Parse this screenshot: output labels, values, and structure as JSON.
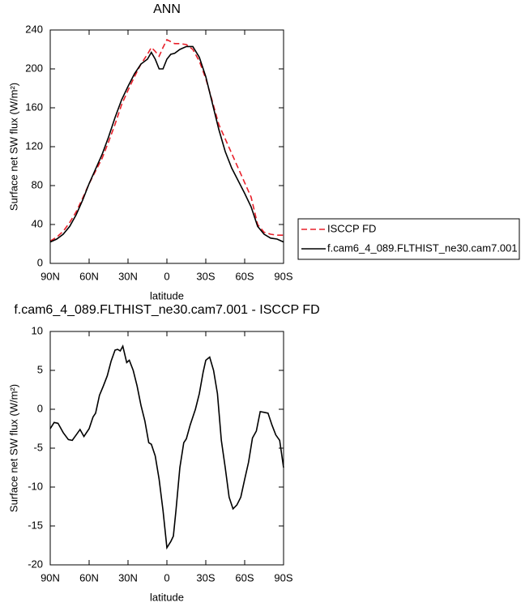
{
  "chart_data": [
    {
      "type": "line",
      "title": "ANN",
      "x_label": "latitude",
      "y_label": "Surface net SW flux (W/m²)",
      "x": [
        90,
        85,
        80,
        75,
        70,
        65,
        60,
        55,
        50,
        45,
        40,
        35,
        30,
        25,
        20,
        15,
        12,
        9,
        6,
        3,
        0,
        -3,
        -6,
        -10,
        -15,
        -20,
        -25,
        -30,
        -35,
        -40,
        -45,
        -50,
        -55,
        -60,
        -65,
        -70,
        -75,
        -80,
        -85,
        -90
      ],
      "series": [
        {
          "name": "ISCCP FD",
          "color": "#e8202a",
          "line_style": "dashed",
          "values": [
            23,
            27,
            33,
            42,
            53,
            67,
            82,
            95,
            108,
            125,
            143,
            163,
            178,
            192,
            205,
            215,
            222,
            218,
            213,
            222,
            230,
            228,
            226,
            226,
            225,
            220,
            208,
            190,
            167,
            143,
            128,
            113,
            98,
            83,
            68,
            40,
            32,
            30,
            29,
            29
          ]
        },
        {
          "name": "f.cam6_4_089.FLTHIST_ne30.cam7.001",
          "color": "#000000",
          "line_style": "solid",
          "values": [
            22,
            25,
            30,
            38,
            50,
            65,
            82,
            97,
            112,
            130,
            150,
            168,
            182,
            195,
            205,
            210,
            217,
            210,
            200,
            200,
            210,
            215,
            216,
            220,
            223,
            223,
            212,
            192,
            165,
            138,
            115,
            98,
            85,
            72,
            58,
            38,
            30,
            26,
            25,
            22
          ]
        }
      ],
      "xlim": [
        90,
        -90
      ],
      "xticks": [
        {
          "value": 90,
          "label": "90N"
        },
        {
          "value": 60,
          "label": "60N"
        },
        {
          "value": 30,
          "label": "30N"
        },
        0,
        {
          "value": -30,
          "label": "30S"
        },
        {
          "value": -60,
          "label": "60S"
        },
        {
          "value": -90,
          "label": "90S"
        }
      ],
      "ylim": [
        0,
        240
      ],
      "yticks": [
        0,
        40,
        80,
        120,
        160,
        200,
        240
      ],
      "grid": false,
      "legend_position": "right"
    },
    {
      "type": "line",
      "title": "f.cam6_4_089.FLTHIST_ne30.cam7.001 - ISCCP FD",
      "x_label": "latitude",
      "y_label": "Surface net SW flux (W/m²)",
      "x": [
        90,
        87,
        84,
        80,
        76,
        73,
        70,
        67,
        64,
        60,
        57,
        55,
        52,
        49,
        46,
        43,
        40,
        38,
        36,
        34,
        31,
        29,
        26,
        23,
        20,
        17,
        14,
        12,
        9,
        6,
        3,
        0,
        -3,
        -5,
        -7,
        -10,
        -13,
        -15,
        -18,
        -22,
        -25,
        -28,
        -30,
        -33,
        -36,
        -39,
        -42,
        -45,
        -48,
        -51,
        -54,
        -57,
        -60,
        -63,
        -66,
        -69,
        -72,
        -75,
        -78,
        -81,
        -84,
        -87,
        -90
      ],
      "series": [
        {
          "color": "#000000",
          "line_style": "solid",
          "values": [
            -2.5,
            -1.7,
            -1.8,
            -3,
            -3.9,
            -4,
            -3.3,
            -2.6,
            -3.5,
            -2.5,
            -1,
            -0.5,
            1.8,
            3,
            4.3,
            6.2,
            7.6,
            7.7,
            7.5,
            8.1,
            6,
            6.3,
            5,
            3,
            0.5,
            -1.5,
            -4.3,
            -4.5,
            -6,
            -9,
            -13,
            -17.8,
            -17,
            -16.3,
            -13,
            -7.5,
            -4.3,
            -3.8,
            -2,
            0,
            2,
            4.8,
            6.3,
            6.7,
            5,
            2,
            -4,
            -7.5,
            -11.3,
            -12.8,
            -12.3,
            -11.3,
            -9,
            -6.8,
            -3.7,
            -2.8,
            -0.3,
            -0.4,
            -0.5,
            -2,
            -3.3,
            -4,
            -7.5
          ]
        }
      ],
      "xlim": [
        90,
        -90
      ],
      "xticks": [
        {
          "value": 90,
          "label": "90N"
        },
        {
          "value": 60,
          "label": "60N"
        },
        {
          "value": 30,
          "label": "30N"
        },
        0,
        {
          "value": -30,
          "label": "30S"
        },
        {
          "value": -60,
          "label": "60S"
        },
        {
          "value": -90,
          "label": "90S"
        }
      ],
      "ylim": [
        -20,
        10
      ],
      "yticks": [
        -20,
        -15,
        -10,
        -5,
        0,
        5,
        10
      ],
      "grid": false
    }
  ]
}
